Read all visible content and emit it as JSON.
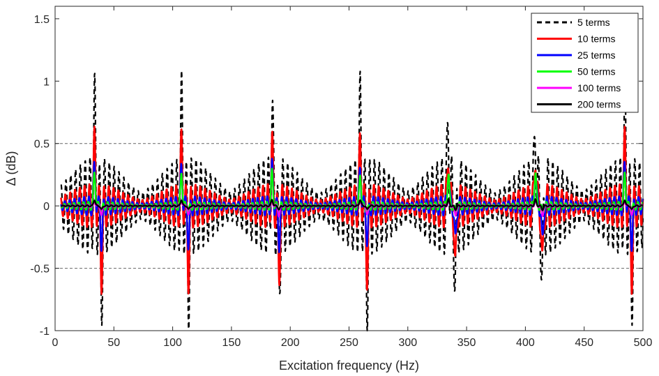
{
  "chart_data": {
    "type": "line",
    "title": "",
    "xlabel": "Excitation frequency (Hz)",
    "ylabel": "Δ (dB)",
    "xlim": [
      0,
      500
    ],
    "ylim": [
      -1,
      1.6
    ],
    "xticks": [
      0,
      50,
      100,
      150,
      200,
      250,
      300,
      350,
      400,
      450,
      500
    ],
    "xtick_labels": [
      "0",
      "50",
      "100",
      "150",
      "200",
      "250",
      "300",
      "350",
      "400",
      "450",
      "500"
    ],
    "yticks": [
      -1,
      -0.5,
      0,
      0.5,
      1,
      1.5
    ],
    "ytick_labels": [
      "-1",
      "-0.5",
      "0",
      "0.5",
      "1",
      "1.5"
    ],
    "reference_lines": [
      0.5,
      -0.5
    ],
    "grid": false,
    "legend_position": "top-right",
    "cluster_centers_hz": [
      35,
      112,
      186,
      264,
      336,
      413,
      486
    ],
    "series": [
      {
        "name": "5 terms",
        "color": "#000000",
        "style": "dashed",
        "peak_max": 0.7,
        "peak_min": -0.62,
        "envelope_amplitude": 0.4
      },
      {
        "name": "10 terms",
        "color": "#ff0000",
        "style": "solid",
        "peak_max": 0.46,
        "peak_min": -0.53,
        "envelope_amplitude": 0.18
      },
      {
        "name": "25 terms",
        "color": "#0000ff",
        "style": "solid",
        "peak_max": 0.3,
        "peak_min": -0.3,
        "envelope_amplitude": 0.08
      },
      {
        "name": "50 terms",
        "color": "#00ff00",
        "style": "solid",
        "peak_max": 0.27,
        "peak_min": -0.05,
        "envelope_amplitude": 0.035
      },
      {
        "name": "100 terms",
        "color": "#ff00ff",
        "style": "solid",
        "peak_max": 0.03,
        "peak_min": -0.08,
        "envelope_amplitude": 0.012
      },
      {
        "name": "200 terms",
        "color": "#000000",
        "style": "solid",
        "peak_max": 0.05,
        "peak_min": -0.03,
        "envelope_amplitude": 0.006
      }
    ]
  }
}
